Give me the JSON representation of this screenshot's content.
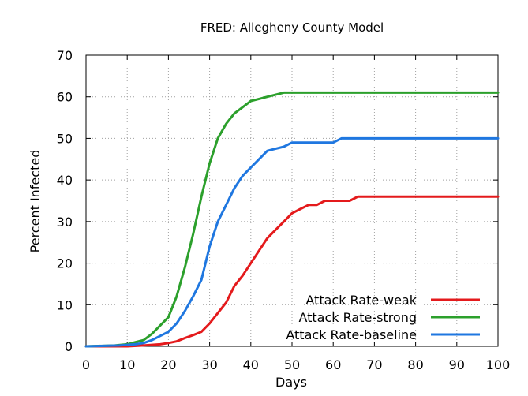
{
  "chart_data": {
    "type": "line",
    "title": "FRED: Allegheny County Model",
    "xlabel": "Days",
    "ylabel": "Percent Infected",
    "xlim": [
      0,
      100
    ],
    "ylim": [
      0,
      70
    ],
    "xticks": [
      0,
      10,
      20,
      30,
      40,
      50,
      60,
      70,
      80,
      90,
      100
    ],
    "yticks": [
      0,
      10,
      20,
      30,
      40,
      50,
      60,
      70
    ],
    "grid": true,
    "legend_position": "bottom-right",
    "series": [
      {
        "name": "Attack Rate-weak",
        "color": "#e41a1c",
        "x": [
          0,
          10,
          14,
          18,
          20,
          22,
          24,
          26,
          28,
          30,
          32,
          34,
          36,
          38,
          40,
          42,
          44,
          46,
          48,
          50,
          52,
          54,
          56,
          58,
          60,
          62,
          64,
          66,
          70,
          80,
          90,
          100
        ],
        "y": [
          0,
          0,
          0.2,
          0.5,
          0.8,
          1.2,
          2,
          2.7,
          3.5,
          5.5,
          8,
          10.5,
          14.5,
          17,
          20,
          23,
          26,
          28,
          30,
          32,
          33,
          34,
          34,
          35,
          35,
          35,
          35,
          36,
          36,
          36,
          36,
          36
        ]
      },
      {
        "name": "Attack Rate-strong",
        "color": "#2ca02c",
        "x": [
          0,
          7,
          10,
          12,
          14,
          16,
          18,
          20,
          22,
          24,
          26,
          28,
          30,
          32,
          34,
          36,
          38,
          40,
          42,
          44,
          46,
          48,
          50,
          60,
          70,
          80,
          90,
          100
        ],
        "y": [
          0,
          0.2,
          0.5,
          1,
          1.5,
          3,
          5,
          7,
          12,
          19,
          27,
          36,
          44,
          50,
          53.5,
          56,
          57.5,
          59,
          59.5,
          60,
          60.5,
          61,
          61,
          61,
          61,
          61,
          61,
          61
        ]
      },
      {
        "name": "Attack Rate-baseline",
        "color": "#1f77e0",
        "x": [
          0,
          8,
          12,
          14,
          16,
          18,
          20,
          22,
          24,
          26,
          28,
          30,
          32,
          34,
          36,
          38,
          40,
          42,
          44,
          46,
          48,
          50,
          55,
          60,
          62,
          70,
          80,
          90,
          100
        ],
        "y": [
          0,
          0.2,
          0.5,
          0.8,
          1.5,
          2.5,
          3.5,
          5.5,
          8.5,
          12,
          16,
          24,
          30,
          34,
          38,
          41,
          43,
          45,
          47,
          47.5,
          48,
          49,
          49,
          49,
          50,
          50,
          50,
          50,
          50
        ]
      }
    ]
  }
}
